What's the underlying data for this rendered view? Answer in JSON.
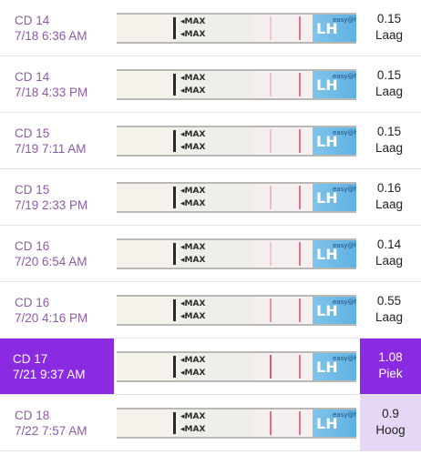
{
  "colors": {
    "date_text": "#8e5aa8",
    "peak_highlight": "#8a2be2",
    "high_highlight": "#e7d7f6",
    "test_line": "#d85577"
  },
  "strip_text": {
    "max": "MAX",
    "arrow": "◂",
    "lh": "LH",
    "brand": "easy@home"
  },
  "readings": [
    {
      "cd": "CD 14",
      "time": "7/18 6:36 AM",
      "value": "0.15",
      "level": "Laag",
      "highlight": "none",
      "test_line_intensity": 0.25
    },
    {
      "cd": "CD 14",
      "time": "7/18 4:33 PM",
      "value": "0.15",
      "level": "Laag",
      "highlight": "none",
      "test_line_intensity": 0.3
    },
    {
      "cd": "CD 15",
      "time": "7/19 7:11 AM",
      "value": "0.15",
      "level": "Laag",
      "highlight": "none",
      "test_line_intensity": 0.3
    },
    {
      "cd": "CD 15",
      "time": "7/19 2:33 PM",
      "value": "0.16",
      "level": "Laag",
      "highlight": "none",
      "test_line_intensity": 0.35
    },
    {
      "cd": "CD 16",
      "time": "7/20 6:54 AM",
      "value": "0.14",
      "level": "Laag",
      "highlight": "none",
      "test_line_intensity": 0.25
    },
    {
      "cd": "CD 16",
      "time": "7/20 4:16 PM",
      "value": "0.55",
      "level": "Laag",
      "highlight": "none",
      "test_line_intensity": 0.6
    },
    {
      "cd": "CD 17",
      "time": "7/21 9:37 AM",
      "value": "1.08",
      "level": "Piek",
      "highlight": "peak",
      "test_line_intensity": 1.0
    },
    {
      "cd": "CD 18",
      "time": "7/22 7:57 AM",
      "value": "0.9",
      "level": "Hoog",
      "highlight": "high",
      "test_line_intensity": 0.85
    }
  ]
}
